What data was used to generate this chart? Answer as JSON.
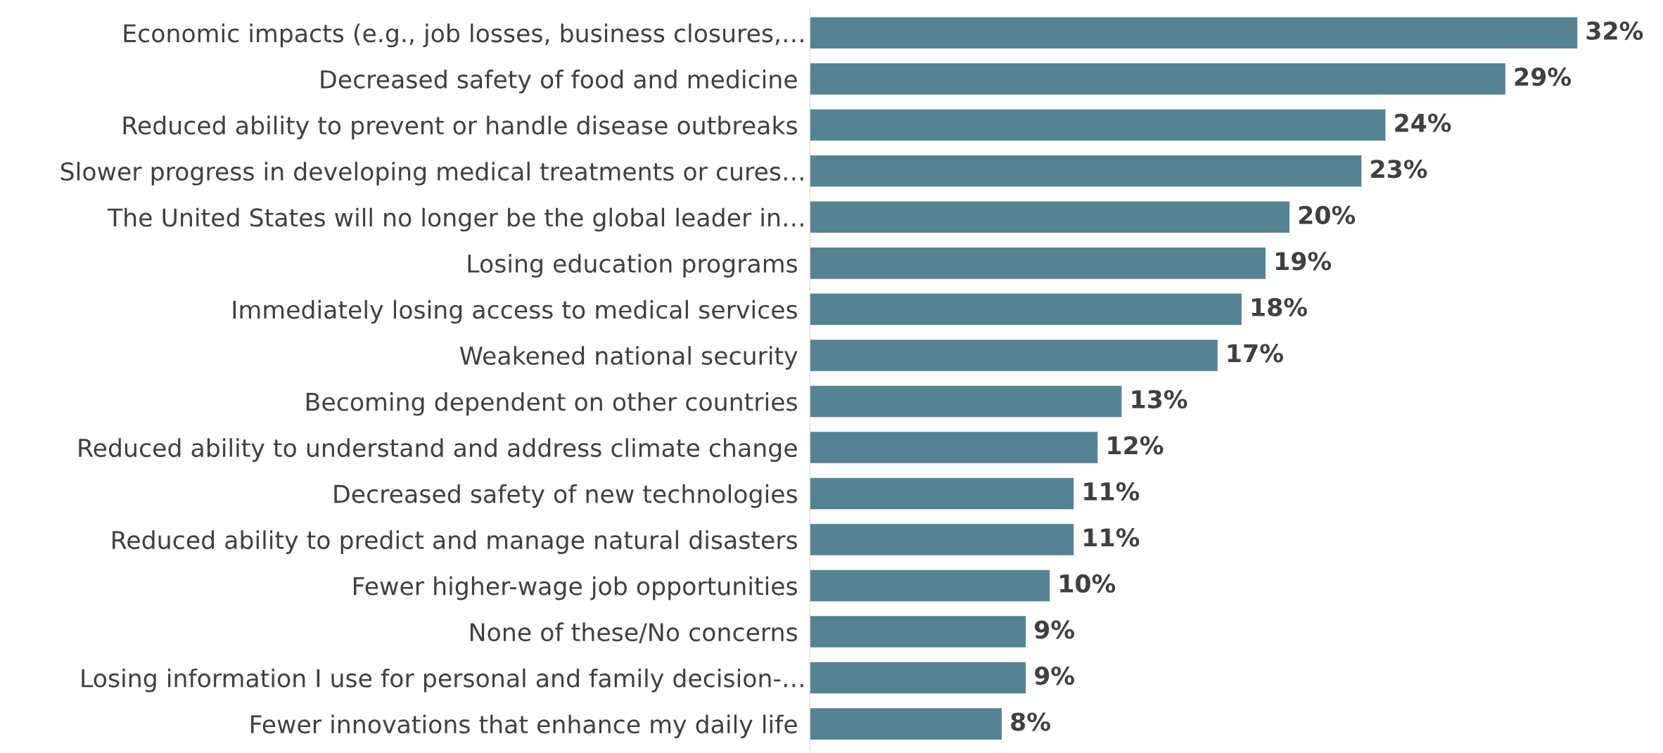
{
  "chart_data": {
    "type": "bar",
    "orientation": "horizontal",
    "categories": [
      "Economic impacts (e.g., job losses, business closures,…",
      "Decreased safety of food and medicine ",
      "Reduced ability to prevent or handle disease outbreaks ",
      "Slower progress in developing medical treatments or cures…",
      "The United States will no longer be the global leader in…",
      "Losing education programs ",
      "Immediately losing access to medical services ",
      "Weakened national security ",
      "Becoming dependent on other countries ",
      "Reduced ability to understand and address climate change ",
      "Decreased safety of new technologies ",
      "Reduced ability to predict and manage natural disasters ",
      "Fewer higher-wage job opportunities ",
      "None of these/No concerns ",
      "Losing information I use for personal and family decision-…",
      "Fewer innovations that enhance my daily life "
    ],
    "values": [
      32,
      29,
      24,
      23,
      20,
      19,
      18,
      17,
      13,
      12,
      11,
      11,
      10,
      9,
      9,
      8
    ],
    "value_labels": [
      "32%",
      "29%",
      "24%",
      "23%",
      "20%",
      "19%",
      "18%",
      "17%",
      "13%",
      "12%",
      "11%",
      "11%",
      "10%",
      "9%",
      "9%",
      "8%"
    ],
    "color": "#568394",
    "grid": false,
    "legend": false
  }
}
